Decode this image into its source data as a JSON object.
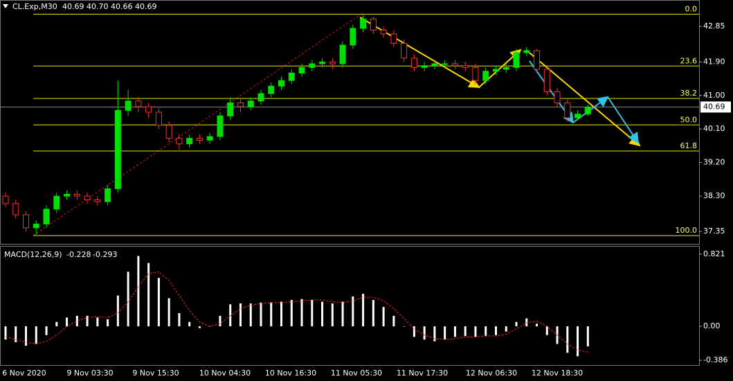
{
  "header": {
    "symbol": "CL.Exp,M30",
    "quote": "40.69 40.70 40.66 40.69"
  },
  "chart_data": [
    {
      "type": "candlestick",
      "name": "CL.Exp",
      "bull_color": "#00e000",
      "bear_color": "#ff3030",
      "ylim": [
        37.02,
        43.56
      ],
      "yticks": [
        42.85,
        {
          "value": 41.9,
          "label": "41.90"
        },
        {
          "value": 41,
          "label": "41.00"
        },
        {
          "value": 40.1,
          "label": "40.10"
        },
        {
          "value": 39.2,
          "label": "39.20"
        },
        {
          "value": 38.3,
          "label": "38.30"
        },
        37.35
      ],
      "x_labels": [
        "6 Nov 2020",
        "9 Nov 03:30",
        "9 Nov 15:30",
        "10 Nov 04:30",
        "10 Nov 16:30",
        "11 Nov 05:30",
        "11 Nov 17:30",
        "12 Nov 06:30",
        "12 Nov 18:30"
      ],
      "open": [
        38.3,
        38.1,
        37.8,
        37.45,
        37.55,
        37.95,
        38.3,
        38.35,
        38.3,
        38.2,
        38.15,
        38.5,
        40.6,
        40.85,
        40.7,
        40.55,
        40.2,
        39.85,
        39.7,
        39.85,
        39.8,
        39.9,
        40.45,
        40.8,
        40.7,
        40.85,
        41.05,
        41.25,
        41.4,
        41.6,
        41.75,
        41.85,
        41.9,
        41.85,
        42.35,
        42.8,
        43.05,
        42.75,
        42.65,
        42.4,
        42.0,
        41.75,
        41.8,
        41.85,
        41.85,
        41.8,
        41.75,
        41.4,
        41.65,
        41.7,
        41.75,
        42.15,
        42.2,
        41.7,
        41.1,
        40.8,
        40.4,
        40.5
      ],
      "high": [
        38.4,
        38.2,
        37.9,
        37.65,
        38.05,
        38.4,
        38.45,
        38.45,
        38.4,
        38.3,
        38.6,
        41.4,
        41.15,
        40.95,
        40.8,
        40.65,
        40.3,
        39.95,
        39.95,
        39.95,
        40.0,
        40.55,
        40.95,
        40.9,
        40.95,
        41.15,
        41.35,
        41.5,
        41.7,
        41.85,
        41.95,
        42.0,
        42.0,
        42.45,
        42.9,
        43.15,
        43.1,
        42.85,
        42.75,
        42.5,
        42.1,
        41.9,
        41.95,
        41.95,
        41.95,
        41.9,
        41.85,
        41.75,
        41.8,
        41.85,
        42.25,
        42.3,
        42.25,
        41.75,
        41.2,
        40.9,
        40.6,
        40.75
      ],
      "low": [
        38.0,
        37.7,
        37.35,
        37.26,
        37.45,
        37.85,
        38.2,
        38.2,
        38.1,
        38.05,
        38.05,
        38.4,
        40.45,
        40.55,
        40.4,
        40.1,
        39.75,
        39.55,
        39.6,
        39.7,
        39.7,
        39.8,
        40.35,
        40.55,
        40.6,
        40.75,
        40.95,
        41.15,
        41.3,
        41.5,
        41.65,
        41.75,
        41.7,
        41.75,
        42.25,
        42.7,
        42.65,
        42.55,
        42.3,
        41.9,
        41.65,
        41.65,
        41.7,
        41.75,
        41.7,
        41.65,
        41.3,
        41.3,
        41.55,
        41.6,
        41.65,
        42.05,
        41.6,
        41.0,
        40.7,
        40.3,
        40.35,
        40.45
      ],
      "close": [
        38.1,
        37.8,
        37.45,
        37.55,
        37.95,
        38.3,
        38.35,
        38.3,
        38.2,
        38.15,
        38.5,
        40.6,
        40.85,
        40.7,
        40.55,
        40.2,
        39.85,
        39.7,
        39.85,
        39.8,
        39.9,
        40.45,
        40.8,
        40.7,
        40.85,
        41.05,
        41.25,
        41.4,
        41.6,
        41.75,
        41.85,
        41.9,
        41.85,
        42.35,
        42.8,
        43.05,
        42.75,
        42.65,
        42.4,
        42.0,
        41.75,
        41.8,
        41.85,
        41.85,
        41.8,
        41.75,
        41.4,
        41.65,
        41.7,
        41.75,
        42.15,
        42.2,
        41.7,
        41.1,
        40.8,
        40.4,
        40.5,
        40.69
      ],
      "last_price": 40.69,
      "fib_levels": [
        {
          "label": "0.0",
          "price": 43.18
        },
        {
          "label": "23.6",
          "price": 41.79
        },
        {
          "label": "38.2",
          "price": 40.92
        },
        {
          "label": "50.0",
          "price": 40.21
        },
        {
          "label": "61.8",
          "price": 39.51
        },
        {
          "label": "100.0",
          "price": 37.24
        }
      ],
      "fib_color": "#e6e600"
    },
    {
      "type": "macd",
      "title": "MACD(12,26,9)",
      "current": [
        -0.228,
        -0.293
      ],
      "ylim": [
        -0.464,
        0.914
      ],
      "yticks": [
        0.821,
        {
          "value": 0,
          "label": "0.00"
        },
        -0.386
      ],
      "series": [
        {
          "name": "histogram",
          "color": "#ffffff",
          "values": [
            -0.15,
            -0.18,
            -0.22,
            -0.2,
            -0.1,
            0.05,
            0.1,
            0.12,
            0.12,
            0.1,
            0.08,
            0.35,
            0.62,
            0.8,
            0.72,
            0.55,
            0.32,
            0.15,
            0.05,
            -0.02,
            0,
            0.12,
            0.25,
            0.26,
            0.26,
            0.27,
            0.27,
            0.28,
            0.3,
            0.31,
            0.3,
            0.28,
            0.26,
            0.28,
            0.34,
            0.37,
            0.3,
            0.22,
            0.12,
            0,
            -0.12,
            -0.15,
            -0.17,
            -0.15,
            -0.12,
            -0.11,
            -0.12,
            -0.11,
            -0.1,
            -0.06,
            0.05,
            0.09,
            0.03,
            -0.1,
            -0.2,
            -0.3,
            -0.34,
            -0.228
          ]
        },
        {
          "name": "signal",
          "color": "#ff2020",
          "values": [
            -0.12,
            -0.15,
            -0.18,
            -0.2,
            -0.17,
            -0.1,
            0,
            0.06,
            0.1,
            0.11,
            0.1,
            0.15,
            0.28,
            0.45,
            0.6,
            0.62,
            0.52,
            0.35,
            0.18,
            0.05,
            0,
            0.03,
            0.12,
            0.2,
            0.24,
            0.26,
            0.27,
            0.27,
            0.28,
            0.29,
            0.3,
            0.3,
            0.28,
            0.27,
            0.29,
            0.33,
            0.33,
            0.29,
            0.2,
            0.09,
            -0.03,
            -0.1,
            -0.14,
            -0.15,
            -0.14,
            -0.12,
            -0.12,
            -0.11,
            -0.11,
            -0.09,
            -0.03,
            0.04,
            0.06,
            0,
            -0.1,
            -0.2,
            -0.27,
            -0.293
          ]
        }
      ]
    }
  ]
}
